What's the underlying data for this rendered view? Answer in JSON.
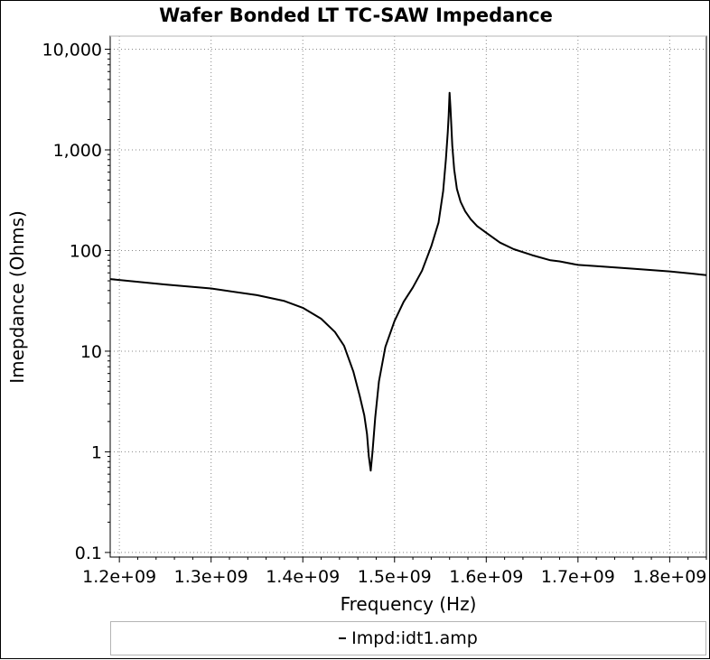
{
  "chart_data": {
    "type": "line",
    "title": "Wafer Bonded LT TC-SAW Impedance",
    "xlabel": "Frequency (Hz)",
    "ylabel": "Imepdance (Ohms)",
    "x_scale": "linear",
    "y_scale": "log",
    "xlim": [
      1190000000,
      1840000000
    ],
    "ylim": [
      0.09,
      13500
    ],
    "x_ticks": [
      1200000000,
      1300000000,
      1400000000,
      1500000000,
      1600000000,
      1700000000,
      1800000000
    ],
    "x_tick_labels": [
      "1.2e+09",
      "1.3e+09",
      "1.4e+09",
      "1.5e+09",
      "1.6e+09",
      "1.7e+09",
      "1.8e+09"
    ],
    "y_ticks": [
      0.1,
      1,
      10,
      100,
      1000,
      10000
    ],
    "y_tick_labels": [
      "0.1",
      "1",
      "10",
      "100",
      "1,000",
      "10,000"
    ],
    "grid": true,
    "legend_position": "bottom",
    "series": [
      {
        "name": "Impd:idt1.amp",
        "color": "#000000",
        "x": [
          1190000000,
          1250000000,
          1300000000,
          1350000000,
          1380000000,
          1400000000,
          1420000000,
          1435000000,
          1445000000,
          1455000000,
          1462000000,
          1467000000,
          1470000000,
          1472000000,
          1474000000,
          1476000000,
          1479000000,
          1483000000,
          1490000000,
          1500000000,
          1510000000,
          1520000000,
          1530000000,
          1540000000,
          1548000000,
          1553000000,
          1556000000,
          1558000000,
          1559000000,
          1560000000,
          1561000000,
          1562000000,
          1563000000,
          1565000000,
          1568000000,
          1572000000,
          1577000000,
          1583000000,
          1590000000,
          1600000000,
          1615000000,
          1630000000,
          1650000000,
          1670000000,
          1680000000,
          1700000000,
          1720000000,
          1760000000,
          1800000000,
          1840000000
        ],
        "y": [
          52,
          46,
          42,
          36,
          31.5,
          27,
          21,
          15.5,
          11.3,
          6.3,
          3.6,
          2.3,
          1.5,
          0.9,
          0.65,
          1.0,
          2.2,
          5.0,
          11,
          20,
          31,
          43,
          63,
          110,
          190,
          390,
          800,
          1500,
          2200,
          3700,
          2600,
          1700,
          1100,
          640,
          410,
          305,
          245,
          205,
          175,
          150,
          120,
          103,
          90,
          80,
          78,
          72,
          70,
          66,
          62,
          57
        ]
      }
    ]
  },
  "legend": {
    "entry": "Impd:idt1.amp"
  }
}
